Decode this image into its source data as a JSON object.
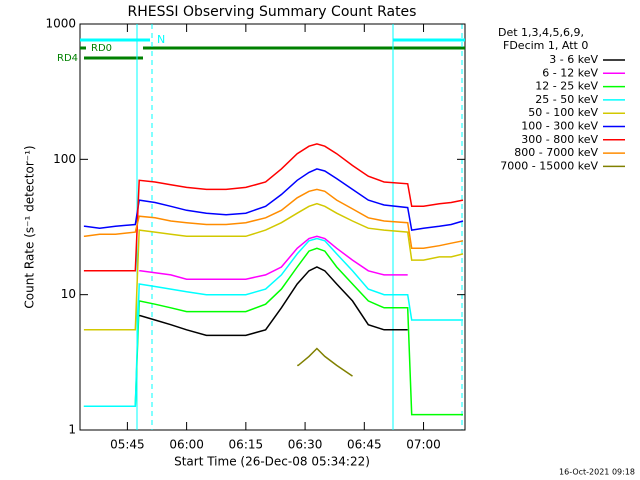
{
  "chart_data": {
    "type": "line",
    "title": "RHESSI Observing Summary Count Rates",
    "x_label": "Start Time (26-Dec-08 05:34:22)",
    "y_label": "Count Rate (s⁻¹ detector⁻¹)",
    "legend_header": [
      "Det 1,3,4,5,6,9,",
      "FDecim 1, Att 0"
    ],
    "footer": "16-Oct-2021 09:18",
    "annotations": [
      "N",
      "RD0",
      "RD4"
    ],
    "log_y": true,
    "xlim": [
      333,
      430.5
    ],
    "ylim": [
      1,
      1000
    ],
    "xticks": [
      {
        "value": 345,
        "label": "05:45"
      },
      {
        "value": 360,
        "label": "06:00"
      },
      {
        "value": 375,
        "label": "06:15"
      },
      {
        "value": 390,
        "label": "06:30"
      },
      {
        "value": 405,
        "label": "06:45"
      },
      {
        "value": 420,
        "label": "07:00"
      }
    ],
    "yticks": [
      1,
      10,
      100,
      1000
    ],
    "x": [
      334,
      338,
      342,
      347,
      348,
      352,
      356,
      360,
      365,
      370,
      375,
      380,
      384,
      388,
      391,
      393,
      395,
      398,
      402,
      406,
      410,
      416,
      417,
      420,
      424,
      427,
      430
    ],
    "series": [
      {
        "name": "3 - 6 keV",
        "color": "#000000",
        "values": [
          null,
          null,
          null,
          null,
          7,
          6.5,
          6,
          5.5,
          5,
          5,
          5,
          5.5,
          8,
          12,
          15,
          16,
          15,
          12,
          9,
          6,
          5.5,
          5.5,
          null,
          null,
          null,
          null,
          null
        ]
      },
      {
        "name": "6 - 12 keV",
        "color": "#ff00ff",
        "values": [
          null,
          null,
          null,
          null,
          15,
          14.5,
          14,
          13,
          13,
          13,
          13,
          14,
          16,
          22,
          26,
          27,
          26,
          22,
          18,
          15,
          14,
          14,
          null,
          null,
          null,
          null,
          null
        ]
      },
      {
        "name": "12 - 25 keV",
        "color": "#00ff00",
        "values": [
          1.5,
          1.5,
          1.5,
          1.5,
          9,
          8.5,
          8,
          7.5,
          7.5,
          7.5,
          7.5,
          8.5,
          11,
          16,
          21,
          22,
          21,
          16,
          12,
          9,
          8,
          8,
          1.3,
          1.3,
          1.3,
          1.3,
          1.3
        ]
      },
      {
        "name": "25 - 50 keV",
        "color": "#00ffff",
        "values": [
          1.5,
          1.5,
          1.5,
          1.5,
          12,
          11.5,
          11,
          10.5,
          10,
          10,
          10,
          11,
          14,
          20,
          25,
          26,
          25,
          20,
          15,
          11,
          10,
          10,
          6.5,
          6.5,
          6.5,
          6.5,
          6.5
        ]
      },
      {
        "name": "50 - 100 keV",
        "color": "#d2c800",
        "values": [
          5.5,
          5.5,
          5.5,
          5.5,
          30,
          29,
          28,
          27,
          27,
          27,
          27,
          30,
          34,
          40,
          45,
          47,
          45,
          40,
          35,
          31,
          30,
          29,
          18,
          18,
          19,
          19,
          20
        ]
      },
      {
        "name": "100 - 300 keV",
        "color": "#0000ff",
        "values": [
          32,
          31,
          32,
          33,
          50,
          48,
          45,
          42,
          40,
          39,
          40,
          45,
          55,
          70,
          80,
          85,
          82,
          72,
          60,
          50,
          46,
          44,
          30,
          31,
          32,
          33,
          35
        ]
      },
      {
        "name": "300 - 800 keV",
        "color": "#ff0000",
        "values": [
          15,
          15,
          15,
          15,
          70,
          68,
          65,
          62,
          60,
          60,
          62,
          68,
          85,
          110,
          125,
          130,
          125,
          110,
          90,
          75,
          68,
          66,
          45,
          45,
          47,
          48,
          50
        ]
      },
      {
        "name": "800 - 7000 keV",
        "color": "#ff8c00",
        "values": [
          27,
          28,
          28,
          29,
          38,
          37,
          35,
          34,
          33,
          33,
          34,
          37,
          42,
          52,
          58,
          60,
          58,
          50,
          43,
          37,
          35,
          34,
          22,
          22,
          23,
          24,
          25
        ]
      },
      {
        "name": "7000 - 15000 keV",
        "color": "#808000",
        "values": [
          null,
          null,
          null,
          null,
          null,
          null,
          null,
          null,
          null,
          null,
          null,
          null,
          null,
          3,
          3.5,
          4,
          3.5,
          3,
          2.5,
          null,
          null,
          null,
          null,
          null,
          null,
          null,
          null
        ]
      }
    ]
  }
}
